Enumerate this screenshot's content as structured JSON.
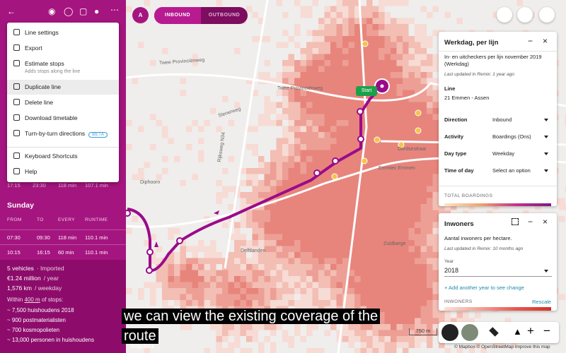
{
  "sidebar": {
    "menu": [
      {
        "label": "Line settings"
      },
      {
        "label": "Export"
      },
      {
        "label": "Estimate stops",
        "sub": "Adds stops along the line"
      },
      {
        "label": "Duplicate line"
      },
      {
        "label": "Delete line"
      },
      {
        "label": "Download timetable"
      },
      {
        "label": "Turn-by-turn directions",
        "badge": "BETA"
      },
      {
        "label": "Keyboard Shortcuts"
      },
      {
        "label": "Help"
      }
    ],
    "partial_row": [
      "17:15",
      "23:30",
      "118 min",
      "107.1 min"
    ],
    "schedule": {
      "title": "Sunday",
      "columns": [
        "FROM",
        "TO",
        "EVERY",
        "RUNTIME"
      ],
      "rows": [
        [
          "07:30",
          "09:30",
          "118 min",
          "110.1 min"
        ],
        [
          "10:15",
          "16:15",
          "60 min",
          "110.1 min"
        ]
      ]
    },
    "stats": [
      {
        "main": "5 vehicles",
        "note": "· Imported"
      },
      {
        "main": "€1.24 million",
        "note": "/ year"
      },
      {
        "main": "1,576 km",
        "note": "/ weekday"
      }
    ],
    "coverage": {
      "prefix": "Within",
      "radius": "400 m",
      "suffix": "of stops:",
      "items": [
        "~ 7,500 huishoudens 2018",
        "~ 900 postmaterialisten",
        "~ 700 kosmopolieten",
        "~ 13,000 personen in huishoudens"
      ]
    }
  },
  "toolbar": {
    "route_letter": "A",
    "directions": [
      "INBOUND",
      "OUTBOUND"
    ]
  },
  "map": {
    "labels": [
      "Twee Provinciënweg",
      "Twee Provinciënweg",
      "Slenerweg",
      "Rijksweg N34",
      "Diphoorn",
      "Dordsestraat",
      "Emmtec Emmen",
      "Delftlanden",
      "Zuidbarge"
    ],
    "start_label": "Start",
    "scale": "750 m",
    "logo": "mapbox",
    "attribution": "© Mapbox © OpenStreetMap Improve this map"
  },
  "panel_lines": {
    "title": "Werkdag, per lijn",
    "description": "In- en uitcheckers per lijn november 2019 (Werkdag)",
    "updated": "Last updated in Remix: 1 year ago",
    "line_label": "Line",
    "line_value": "21 Emmen - Assen",
    "fields": [
      {
        "label": "Direction",
        "value": "Inbound"
      },
      {
        "label": "Activity",
        "value": "Boardings (Ons)"
      },
      {
        "label": "Day type",
        "value": "Weekday"
      },
      {
        "label": "Time of day",
        "value": "Select an option"
      }
    ],
    "legend_title": "TOTAL BOARDINGS"
  },
  "panel_inhabitants": {
    "title": "Inwoners",
    "description": "Aantal inwoners per hectare.",
    "updated": "Last updated in Remix: 10 months ago",
    "year_label": "Year",
    "year_value": "2018",
    "add_year": "+ Add another year to see change",
    "legend_title": "INWONERS",
    "rescale": "Rescale"
  },
  "caption": "we can view the existing coverage of the route"
}
